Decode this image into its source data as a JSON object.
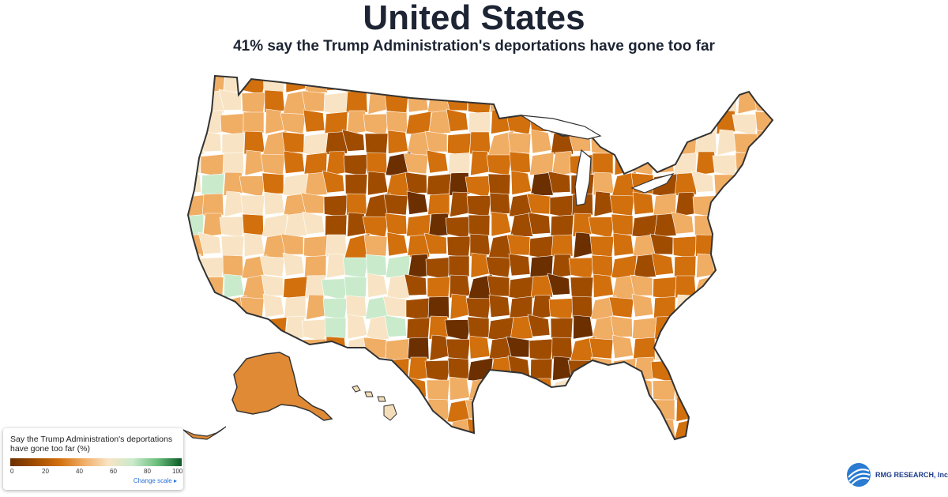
{
  "header": {
    "title": "United States",
    "subtitle": "41% say the Trump Administration's deportations have gone too far"
  },
  "legend": {
    "title": "Say the Trump Administration's deportations have gone too far (%)",
    "ticks": [
      "0",
      "20",
      "40",
      "60",
      "80",
      "100"
    ],
    "change_scale_label": "Change scale",
    "colors": [
      "#6b2f00",
      "#a04c00",
      "#d2700e",
      "#f0ad64",
      "#f8e4c4",
      "#c9ebcc",
      "#6bbf7c",
      "#0b5a26"
    ]
  },
  "brand": {
    "name": "RMG RESEARCH, Inc.",
    "color": "#1d3c8a"
  },
  "map": {
    "border_color": "#333333",
    "region_line_color": "#ffffff"
  }
}
